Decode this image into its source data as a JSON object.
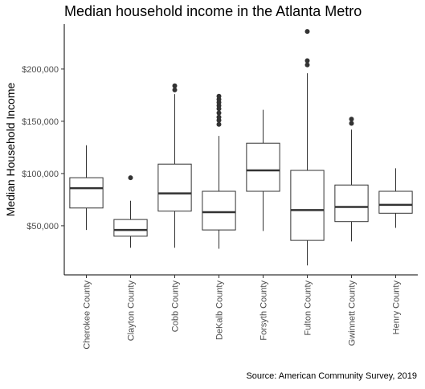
{
  "chart_data": {
    "type": "boxplot",
    "title": "Median household income in the Atlanta Metro",
    "xlabel": "",
    "ylabel": "Median Household Income",
    "caption": "Source: American Community Survey, 2019",
    "ylim": [
      3000,
      243000
    ],
    "y_ticks": [
      50000,
      100000,
      150000,
      200000
    ],
    "y_tick_labels": [
      "$50,000",
      "$100,000",
      "$150,000",
      "$200,000"
    ],
    "grid": false,
    "legend": "none",
    "colors": {
      "box_fill": "#ffffff",
      "stroke": "#333333",
      "outlier": "#333333"
    },
    "categories": [
      "Cherokee County",
      "Clayton County",
      "Cobb County",
      "DeKalb County",
      "Forsyth County",
      "Fulton County",
      "Gwinnett County",
      "Henry County"
    ],
    "boxes": [
      {
        "category": "Cherokee County",
        "whisker_low": 46000,
        "q1": 67000,
        "median": 86000,
        "q3": 96000,
        "whisker_high": 127000,
        "outliers": []
      },
      {
        "category": "Clayton County",
        "whisker_low": 29000,
        "q1": 40000,
        "median": 46000,
        "q3": 56000,
        "whisker_high": 74000,
        "outliers": [
          96000
        ]
      },
      {
        "category": "Cobb County",
        "whisker_low": 29000,
        "q1": 64000,
        "median": 81000,
        "q3": 109000,
        "whisker_high": 176000,
        "outliers": [
          180000,
          184000
        ]
      },
      {
        "category": "DeKalb County",
        "whisker_low": 28000,
        "q1": 46000,
        "median": 63000,
        "q3": 83000,
        "whisker_high": 136000,
        "outliers": [
          147000,
          151000,
          154000,
          158000,
          162000,
          165000,
          168000,
          171000,
          174000
        ]
      },
      {
        "category": "Forsyth County",
        "whisker_low": 45000,
        "q1": 83000,
        "median": 103000,
        "q3": 129000,
        "whisker_high": 161000,
        "outliers": []
      },
      {
        "category": "Fulton County",
        "whisker_low": 12000,
        "q1": 36000,
        "median": 65000,
        "q3": 103000,
        "whisker_high": 196000,
        "outliers": [
          204000,
          208000,
          236000
        ]
      },
      {
        "category": "Gwinnett County",
        "whisker_low": 35000,
        "q1": 54000,
        "median": 68000,
        "q3": 89000,
        "whisker_high": 142000,
        "outliers": [
          148000,
          152000
        ]
      },
      {
        "category": "Henry County",
        "whisker_low": 48000,
        "q1": 62000,
        "median": 70000,
        "q3": 83000,
        "whisker_high": 105000,
        "outliers": []
      }
    ]
  }
}
